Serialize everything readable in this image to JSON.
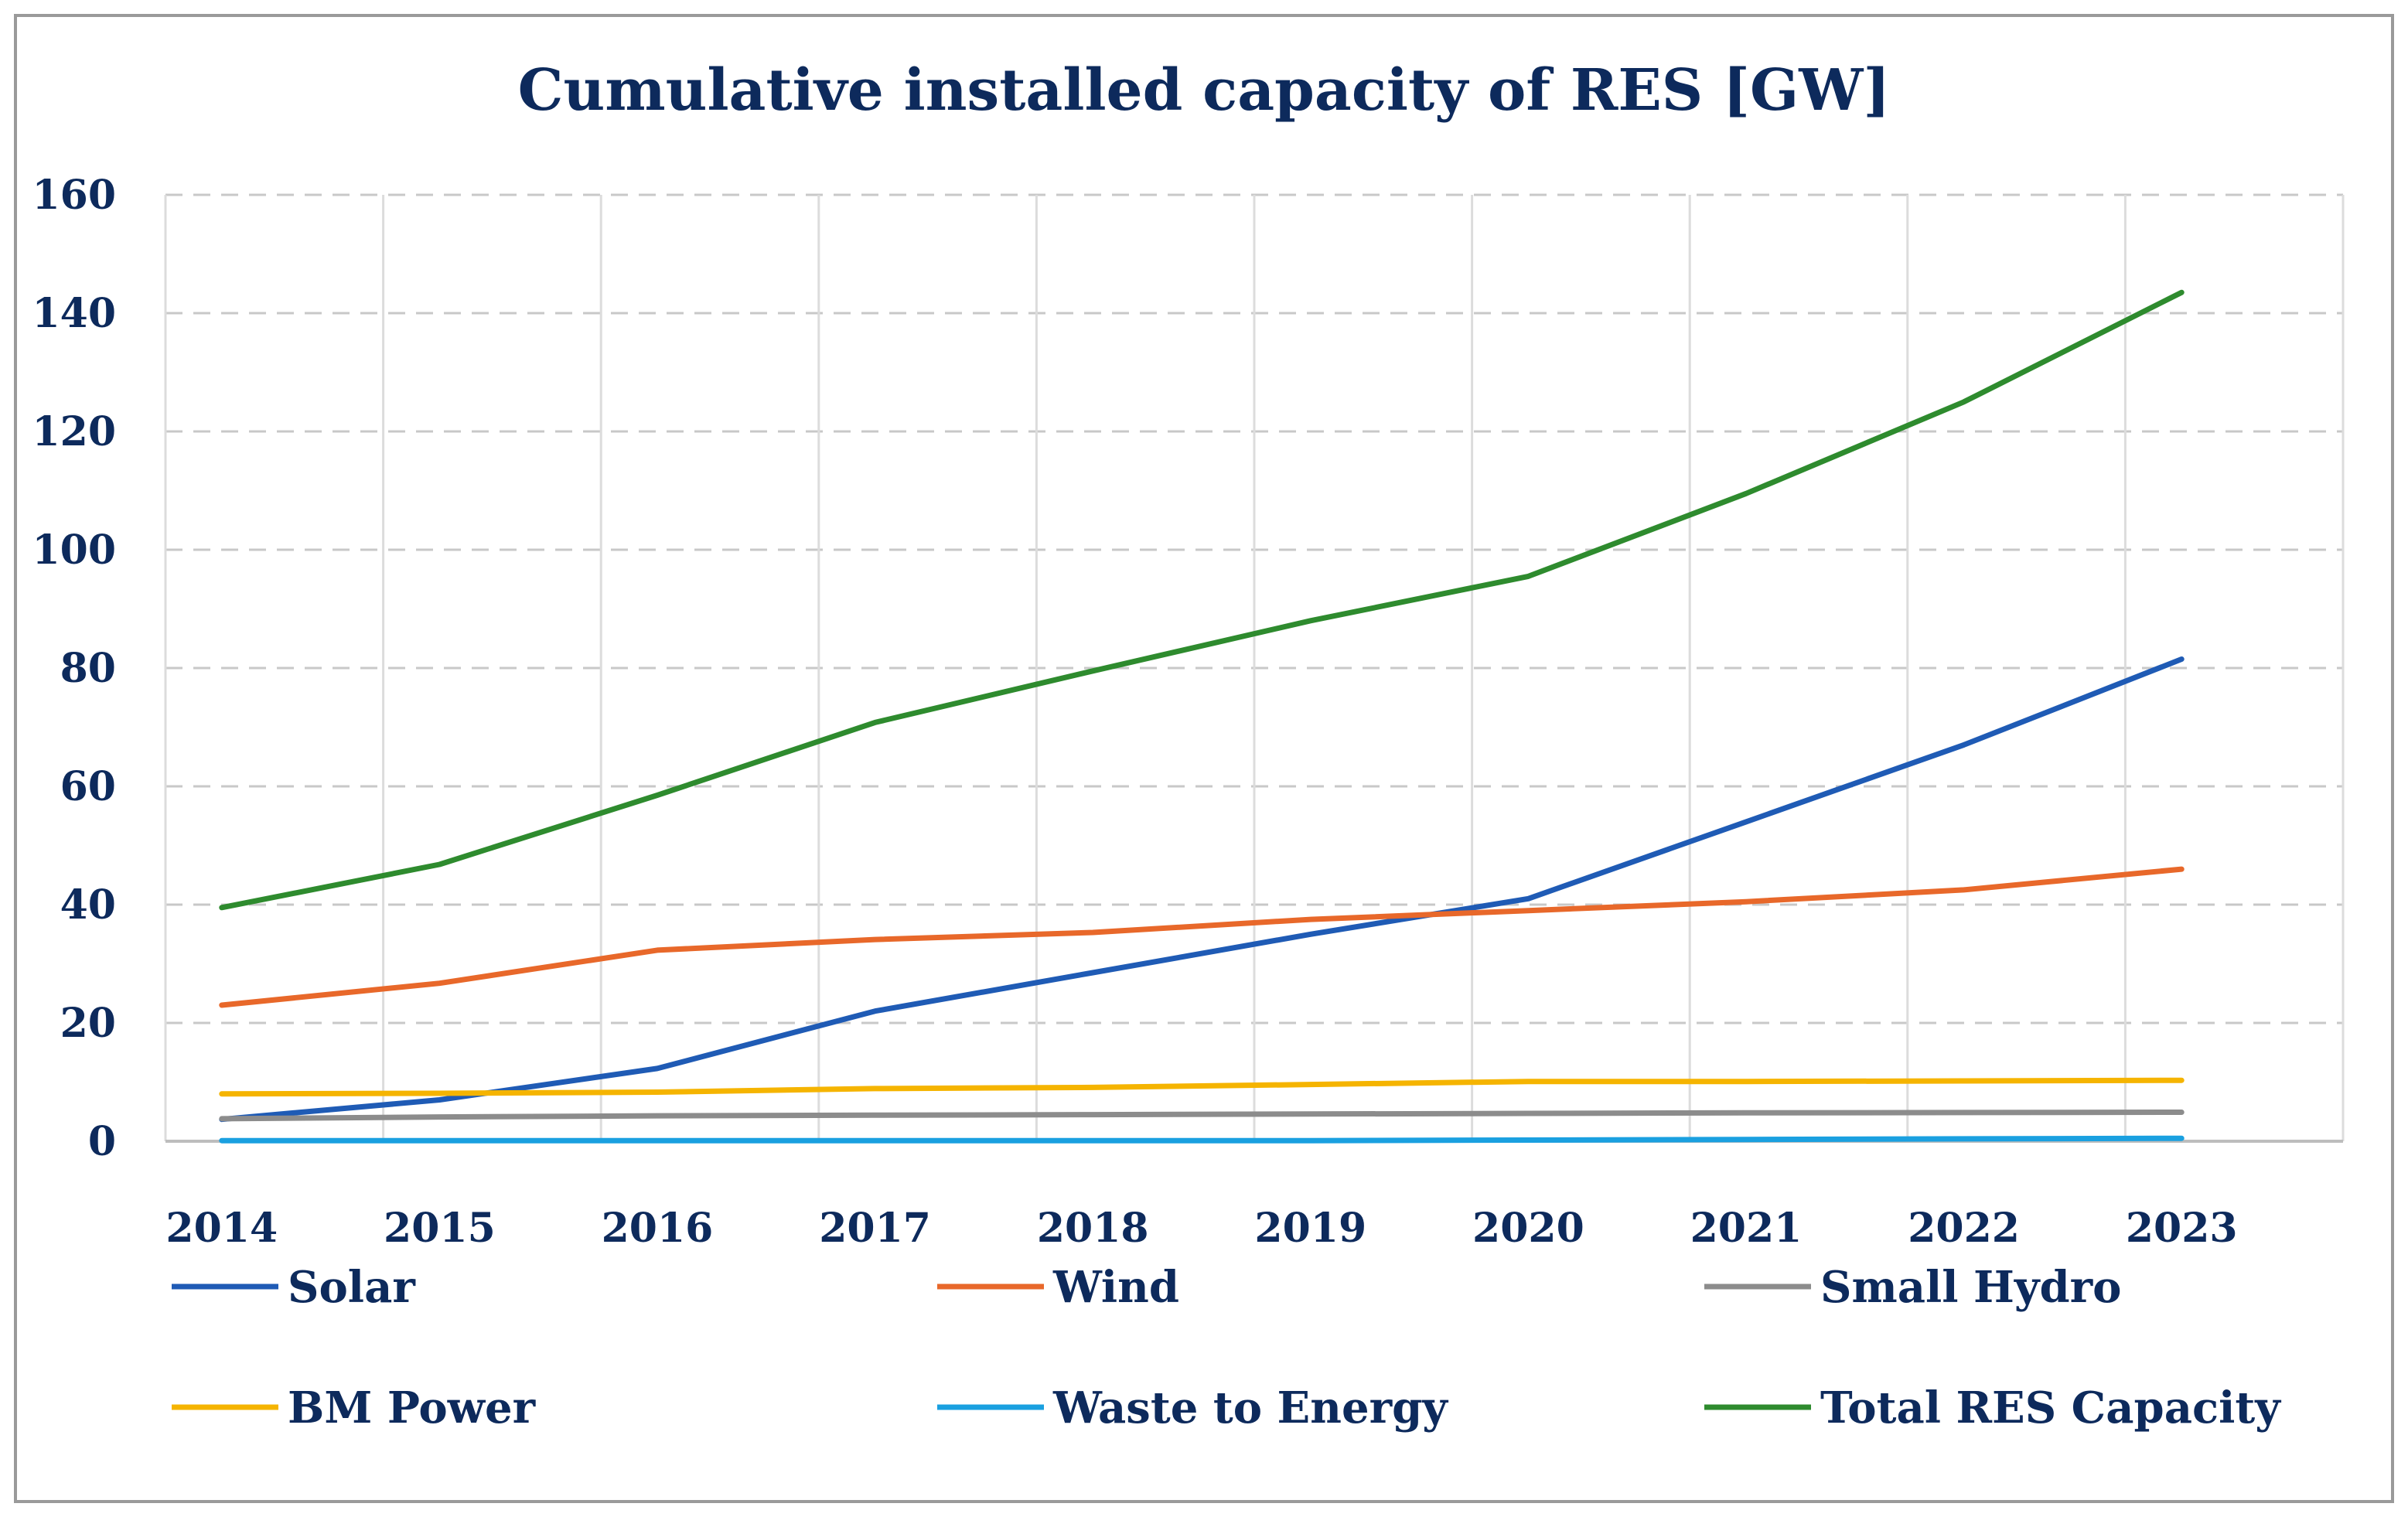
{
  "chart_data": {
    "type": "line",
    "title": "Cumulative installed capacity of RES [GW]",
    "xlabel": "",
    "ylabel": "",
    "ylim": [
      0,
      160
    ],
    "yticks": [
      0,
      20,
      40,
      60,
      80,
      100,
      120,
      140,
      160
    ],
    "categories": [
      "2014",
      "2015",
      "2016",
      "2017",
      "2018",
      "2019",
      "2020",
      "2021",
      "2022",
      "2023"
    ],
    "grid": true,
    "legend_position": "bottom",
    "series": [
      {
        "name": "Solar",
        "color": "#1f5bb5",
        "values": [
          3.7,
          7,
          12.3,
          22,
          28.5,
          35,
          41,
          54,
          67,
          81.5
        ]
      },
      {
        "name": "Wind",
        "color": "#e8682a",
        "values": [
          23,
          26.7,
          32.3,
          34.1,
          35.3,
          37.5,
          39,
          40.5,
          42.5,
          46
        ]
      },
      {
        "name": "Small Hydro",
        "color": "#8c8c8c",
        "values": [
          3.8,
          4.1,
          4.3,
          4.4,
          4.5,
          4.6,
          4.7,
          4.8,
          4.85,
          4.9
        ]
      },
      {
        "name": "BM Power",
        "color": "#f5b400",
        "values": [
          8,
          8.1,
          8.3,
          8.9,
          9.1,
          9.6,
          10.1,
          10.1,
          10.2,
          10.3
        ]
      },
      {
        "name": "Waste to Energy",
        "color": "#1aa0e0",
        "values": [
          0.1,
          0.1,
          0.1,
          0.1,
          0.1,
          0.1,
          0.2,
          0.3,
          0.4,
          0.5
        ]
      },
      {
        "name": "Total RES Capacity",
        "color": "#2e8b2e",
        "values": [
          39.5,
          46.8,
          58.5,
          70.8,
          79.5,
          88,
          95.5,
          109.5,
          125,
          143.5
        ]
      }
    ]
  }
}
